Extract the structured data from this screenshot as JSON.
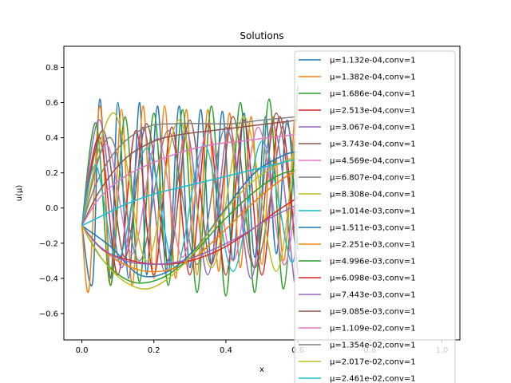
{
  "chart_data": {
    "type": "line",
    "title": "Solutions",
    "xlabel": "x",
    "ylabel": "u(μ)",
    "xlim": [
      -0.05,
      1.05
    ],
    "ylim": [
      -0.75,
      0.92
    ],
    "xticks": [
      "0.0",
      "0.2",
      "0.4",
      "0.6",
      "0.8",
      "1.0"
    ],
    "xtick_values": [
      0.0,
      0.2,
      0.4,
      0.6,
      0.8,
      1.0
    ],
    "yticks": [
      "−0.6",
      "−0.4",
      "−0.2",
      "0.0",
      "0.2",
      "0.4",
      "0.6",
      "0.8"
    ],
    "ytick_values": [
      -0.6,
      -0.4,
      -0.2,
      0.0,
      0.2,
      0.4,
      0.6,
      0.8
    ],
    "grid": false,
    "legend_position": "right",
    "series": [
      {
        "name": "μ=1.132e-04,conv=1",
        "color": "#1f77b4",
        "points": [
          [
            0,
            -0.1
          ],
          [
            0.03,
            -0.42
          ],
          [
            0.05,
            0.62
          ],
          [
            0.08,
            -0.4
          ],
          [
            0.1,
            0.6
          ],
          [
            0.13,
            -0.4
          ],
          [
            0.16,
            0.6
          ],
          [
            0.18,
            -0.38
          ],
          [
            0.21,
            0.58
          ],
          [
            0.24,
            -0.36
          ],
          [
            0.27,
            0.58
          ],
          [
            0.3,
            -0.34
          ],
          [
            0.33,
            0.56
          ],
          [
            0.36,
            -0.32
          ],
          [
            0.39,
            0.55
          ],
          [
            0.42,
            -0.3
          ],
          [
            0.45,
            0.54
          ],
          [
            0.48,
            -0.28
          ],
          [
            0.51,
            0.52
          ],
          [
            0.54,
            -0.26
          ],
          [
            0.57,
            0.5
          ],
          [
            0.6,
            -0.24
          ]
        ]
      },
      {
        "name": "μ=1.382e-04,conv=1",
        "color": "#ff7f0e",
        "points": [
          [
            0,
            -0.1
          ],
          [
            0.02,
            -0.46
          ],
          [
            0.05,
            0.58
          ],
          [
            0.08,
            -0.44
          ],
          [
            0.11,
            0.56
          ],
          [
            0.14,
            -0.44
          ],
          [
            0.17,
            0.58
          ],
          [
            0.2,
            -0.4
          ],
          [
            0.23,
            0.58
          ],
          [
            0.26,
            -0.4
          ],
          [
            0.29,
            0.56
          ],
          [
            0.32,
            -0.38
          ],
          [
            0.35,
            0.56
          ],
          [
            0.38,
            -0.36
          ],
          [
            0.41,
            0.54
          ],
          [
            0.44,
            -0.34
          ],
          [
            0.47,
            0.52
          ],
          [
            0.5,
            -0.32
          ],
          [
            0.53,
            0.52
          ],
          [
            0.56,
            -0.3
          ],
          [
            0.59,
            0.5
          ]
        ]
      },
      {
        "name": "μ=1.686e-04,conv=1",
        "color": "#2ca02c",
        "points": [
          [
            0,
            -0.1
          ],
          [
            0.04,
            0.48
          ],
          [
            0.08,
            -0.44
          ],
          [
            0.12,
            0.52
          ],
          [
            0.16,
            -0.42
          ],
          [
            0.2,
            0.54
          ],
          [
            0.24,
            -0.44
          ],
          [
            0.28,
            0.56
          ],
          [
            0.32,
            -0.48
          ],
          [
            0.36,
            0.58
          ],
          [
            0.4,
            -0.5
          ],
          [
            0.44,
            0.6
          ],
          [
            0.48,
            -0.48
          ],
          [
            0.52,
            0.62
          ],
          [
            0.56,
            -0.46
          ],
          [
            0.6,
            0.7
          ]
        ]
      },
      {
        "name": "μ=2.513e-04,conv=1",
        "color": "#d62728",
        "points": [
          [
            0,
            -0.1
          ],
          [
            0.05,
            0.4
          ],
          [
            0.1,
            -0.38
          ],
          [
            0.15,
            0.44
          ],
          [
            0.2,
            -0.38
          ],
          [
            0.25,
            0.46
          ],
          [
            0.3,
            -0.38
          ],
          [
            0.35,
            0.48
          ],
          [
            0.4,
            -0.38
          ],
          [
            0.45,
            0.5
          ],
          [
            0.5,
            -0.38
          ],
          [
            0.55,
            0.52
          ],
          [
            0.6,
            -0.38
          ]
        ]
      },
      {
        "name": "μ=3.067e-04,conv=1",
        "color": "#9467bd",
        "points": [
          [
            0,
            -0.1
          ],
          [
            0.05,
            0.5
          ],
          [
            0.11,
            -0.34
          ],
          [
            0.17,
            0.46
          ],
          [
            0.23,
            -0.36
          ],
          [
            0.29,
            0.44
          ],
          [
            0.35,
            -0.38
          ],
          [
            0.41,
            0.46
          ],
          [
            0.47,
            -0.4
          ],
          [
            0.53,
            0.48
          ],
          [
            0.59,
            -0.42
          ]
        ]
      },
      {
        "name": "μ=3.743e-04,conv=1",
        "color": "#8c564b",
        "points": [
          [
            0,
            -0.1
          ],
          [
            0.06,
            0.44
          ],
          [
            0.12,
            -0.28
          ],
          [
            0.18,
            0.48
          ],
          [
            0.24,
            -0.3
          ],
          [
            0.3,
            0.5
          ],
          [
            0.36,
            -0.32
          ],
          [
            0.42,
            0.52
          ],
          [
            0.48,
            -0.34
          ],
          [
            0.54,
            0.54
          ],
          [
            0.6,
            -0.36
          ]
        ]
      },
      {
        "name": "μ=4.569e-04,conv=1",
        "color": "#e377c2",
        "points": [
          [
            0,
            -0.1
          ],
          [
            0.07,
            0.36
          ],
          [
            0.14,
            -0.26
          ],
          [
            0.21,
            0.4
          ],
          [
            0.28,
            -0.28
          ],
          [
            0.35,
            0.44
          ],
          [
            0.42,
            -0.3
          ],
          [
            0.49,
            0.46
          ],
          [
            0.56,
            -0.32
          ],
          [
            0.6,
            0.2
          ]
        ]
      },
      {
        "name": "μ=6.807e-04,conv=1",
        "color": "#7f7f7f",
        "points": [
          [
            0,
            -0.1
          ],
          [
            0.08,
            0.4
          ],
          [
            0.16,
            -0.3
          ],
          [
            0.24,
            0.44
          ],
          [
            0.32,
            -0.32
          ],
          [
            0.4,
            0.46
          ],
          [
            0.48,
            -0.34
          ],
          [
            0.56,
            0.48
          ],
          [
            0.6,
            0.1
          ]
        ]
      },
      {
        "name": "μ=8.308e-04,conv=1",
        "color": "#bcbd22",
        "points": [
          [
            0,
            -0.1
          ],
          [
            0.09,
            0.54
          ],
          [
            0.18,
            -0.3
          ],
          [
            0.27,
            0.5
          ],
          [
            0.36,
            -0.34
          ],
          [
            0.45,
            0.52
          ],
          [
            0.54,
            -0.36
          ],
          [
            0.6,
            0.58
          ]
        ]
      },
      {
        "name": "μ=1.014e-03,conv=1",
        "color": "#17becf",
        "points": [
          [
            0,
            -0.1
          ],
          [
            0.04,
            0.24
          ],
          [
            0.1,
            -0.3
          ],
          [
            0.18,
            0.34
          ],
          [
            0.26,
            -0.34
          ],
          [
            0.34,
            0.36
          ],
          [
            0.42,
            -0.36
          ],
          [
            0.5,
            0.38
          ],
          [
            0.58,
            -0.3
          ],
          [
            0.6,
            0.0
          ]
        ]
      },
      {
        "name": "μ=1.511e-03,conv=1",
        "color": "#1f77b4",
        "points": [
          [
            0,
            -0.1
          ],
          [
            0.08,
            -0.22
          ],
          [
            0.16,
            -0.38
          ],
          [
            0.24,
            -0.36
          ],
          [
            0.32,
            -0.22
          ],
          [
            0.4,
            0.0
          ],
          [
            0.48,
            0.2
          ],
          [
            0.56,
            0.3
          ],
          [
            0.6,
            0.32
          ]
        ]
      },
      {
        "name": "μ=2.251e-03,conv=1",
        "color": "#ff7f0e",
        "points": [
          [
            0,
            -0.1
          ],
          [
            0.06,
            -0.24
          ],
          [
            0.14,
            -0.34
          ],
          [
            0.22,
            -0.36
          ],
          [
            0.3,
            -0.3
          ],
          [
            0.38,
            -0.16
          ],
          [
            0.46,
            0.0
          ],
          [
            0.54,
            0.14
          ],
          [
            0.6,
            0.22
          ]
        ]
      },
      {
        "name": "μ=4.996e-03,conv=1",
        "color": "#2ca02c",
        "points": [
          [
            0,
            -0.1
          ],
          [
            0.06,
            -0.3
          ],
          [
            0.14,
            -0.42
          ],
          [
            0.22,
            -0.4
          ],
          [
            0.3,
            -0.28
          ],
          [
            0.38,
            -0.1
          ],
          [
            0.46,
            0.06
          ],
          [
            0.54,
            0.18
          ],
          [
            0.6,
            0.22
          ]
        ]
      },
      {
        "name": "μ=6.098e-03,conv=1",
        "color": "#d62728",
        "points": [
          [
            0,
            -0.1
          ],
          [
            0.06,
            -0.24
          ],
          [
            0.14,
            -0.3
          ],
          [
            0.22,
            -0.32
          ],
          [
            0.3,
            -0.3
          ],
          [
            0.38,
            -0.24
          ],
          [
            0.46,
            -0.14
          ],
          [
            0.54,
            -0.02
          ],
          [
            0.6,
            0.06
          ]
        ]
      },
      {
        "name": "μ=7.443e-03,conv=1",
        "color": "#9467bd",
        "points": [
          [
            0,
            -0.1
          ],
          [
            0.05,
            -0.22
          ],
          [
            0.12,
            -0.3
          ],
          [
            0.2,
            -0.32
          ],
          [
            0.28,
            -0.3
          ],
          [
            0.36,
            -0.24
          ],
          [
            0.44,
            -0.16
          ],
          [
            0.52,
            -0.06
          ],
          [
            0.6,
            0.02
          ]
        ]
      },
      {
        "name": "μ=9.085e-03,conv=1",
        "color": "#8c564b",
        "points": [
          [
            0,
            -0.1
          ],
          [
            0.05,
            0.1
          ],
          [
            0.12,
            0.28
          ],
          [
            0.2,
            0.38
          ],
          [
            0.28,
            0.42
          ],
          [
            0.36,
            0.44
          ],
          [
            0.44,
            0.46
          ],
          [
            0.52,
            0.48
          ],
          [
            0.6,
            0.5
          ]
        ]
      },
      {
        "name": "μ=1.109e-02,conv=1",
        "color": "#e377c2",
        "points": [
          [
            0,
            -0.1
          ],
          [
            0.05,
            0.06
          ],
          [
            0.12,
            0.18
          ],
          [
            0.2,
            0.26
          ],
          [
            0.28,
            0.32
          ],
          [
            0.36,
            0.36
          ],
          [
            0.44,
            0.38
          ],
          [
            0.52,
            0.4
          ],
          [
            0.6,
            0.42
          ]
        ]
      },
      {
        "name": "μ=1.354e-02,conv=1",
        "color": "#7f7f7f",
        "points": [
          [
            0,
            -0.1
          ],
          [
            0.04,
            0.14
          ],
          [
            0.1,
            0.34
          ],
          [
            0.18,
            0.46
          ],
          [
            0.26,
            0.48
          ],
          [
            0.34,
            0.48
          ],
          [
            0.42,
            0.48
          ],
          [
            0.5,
            0.5
          ],
          [
            0.6,
            0.52
          ]
        ]
      },
      {
        "name": "μ=2.017e-02,conv=1",
        "color": "#bcbd22",
        "points": [
          [
            0,
            -0.1
          ],
          [
            0.06,
            -0.3
          ],
          [
            0.12,
            -0.42
          ],
          [
            0.18,
            -0.46
          ],
          [
            0.24,
            -0.4
          ],
          [
            0.3,
            -0.28
          ],
          [
            0.36,
            -0.12
          ],
          [
            0.42,
            0.04
          ],
          [
            0.48,
            0.16
          ],
          [
            0.54,
            0.24
          ],
          [
            0.6,
            0.3
          ]
        ]
      },
      {
        "name": "μ=2.461e-02,conv=1",
        "color": "#17becf",
        "points": [
          [
            0,
            -0.1
          ],
          [
            0.06,
            -0.04
          ],
          [
            0.12,
            0.02
          ],
          [
            0.2,
            0.08
          ],
          [
            0.28,
            0.12
          ],
          [
            0.36,
            0.16
          ],
          [
            0.44,
            0.2
          ],
          [
            0.52,
            0.24
          ],
          [
            0.6,
            0.28
          ]
        ]
      }
    ]
  }
}
